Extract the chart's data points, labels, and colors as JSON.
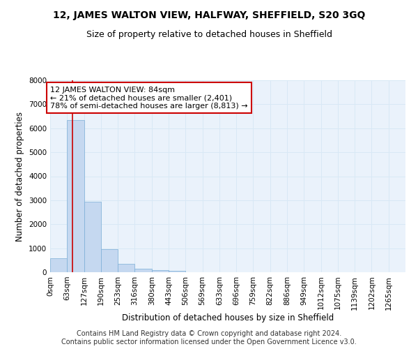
{
  "title": "12, JAMES WALTON VIEW, HALFWAY, SHEFFIELD, S20 3GQ",
  "subtitle": "Size of property relative to detached houses in Sheffield",
  "xlabel": "Distribution of detached houses by size in Sheffield",
  "ylabel": "Number of detached properties",
  "footer_line1": "Contains HM Land Registry data © Crown copyright and database right 2024.",
  "footer_line2": "Contains public sector information licensed under the Open Government Licence v3.0.",
  "bar_labels": [
    "0sqm",
    "63sqm",
    "127sqm",
    "190sqm",
    "253sqm",
    "316sqm",
    "380sqm",
    "443sqm",
    "506sqm",
    "569sqm",
    "633sqm",
    "696sqm",
    "759sqm",
    "822sqm",
    "886sqm",
    "949sqm",
    "1012sqm",
    "1075sqm",
    "1139sqm",
    "1202sqm",
    "1265sqm"
  ],
  "bar_values": [
    570,
    6350,
    2950,
    950,
    360,
    140,
    80,
    55,
    0,
    0,
    0,
    0,
    0,
    0,
    0,
    0,
    0,
    0,
    0,
    0,
    0
  ],
  "bar_color": "#c5d8f0",
  "bar_edge_color": "#7aaed6",
  "grid_color": "#d8e8f5",
  "background_color": "#eaf2fb",
  "property_line_color": "#cc0000",
  "annotation_text": "12 JAMES WALTON VIEW: 84sqm\n← 21% of detached houses are smaller (2,401)\n78% of semi-detached houses are larger (8,813) →",
  "annotation_box_color": "#ffffff",
  "annotation_box_edge": "#cc0000",
  "ylim": [
    0,
    8000
  ],
  "yticks": [
    0,
    1000,
    2000,
    3000,
    4000,
    5000,
    6000,
    7000,
    8000
  ],
  "title_fontsize": 10,
  "subtitle_fontsize": 9,
  "axis_label_fontsize": 8.5,
  "tick_fontsize": 7.5,
  "annotation_fontsize": 8,
  "footer_fontsize": 7
}
